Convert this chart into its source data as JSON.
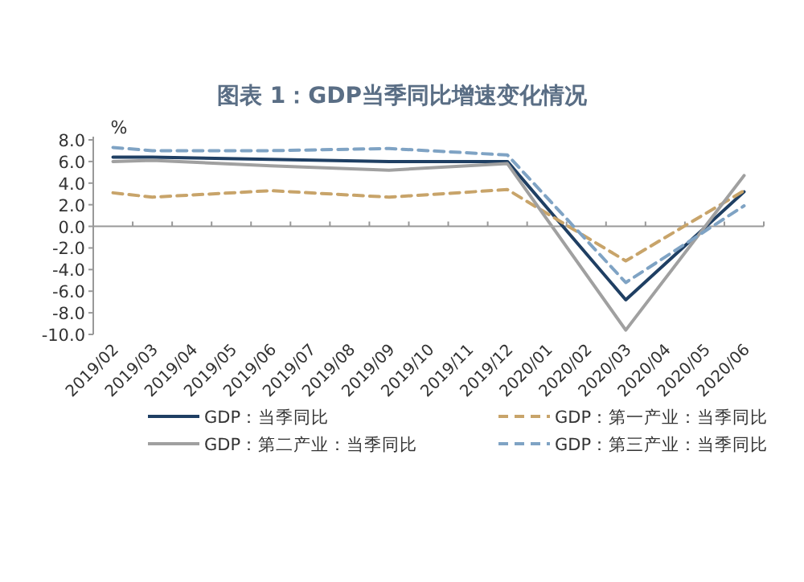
{
  "chart_data": {
    "type": "line",
    "title": "图表 1：GDP当季同比增速变化情况",
    "ylabel": "%",
    "categories": [
      "2019/02",
      "2019/03",
      "2019/04",
      "2019/05",
      "2019/06",
      "2019/07",
      "2019/08",
      "2019/09",
      "2019/10",
      "2019/11",
      "2019/12",
      "2020/01",
      "2020/02",
      "2020/03",
      "2020/04",
      "2020/05",
      "2020/06"
    ],
    "series": [
      {
        "name": "GDP：当季同比",
        "color": "#1f3f63",
        "line_style": "solid",
        "x": [
          "2019/02",
          "2019/03",
          "2019/06",
          "2019/09",
          "2019/12",
          "2020/03",
          "2020/06"
        ],
        "values": [
          6.4,
          6.4,
          6.2,
          6.0,
          6.0,
          -6.8,
          3.2
        ]
      },
      {
        "name": "GDP：第一产业：当季同比",
        "color": "#c8a46a",
        "line_style": "dashed",
        "x": [
          "2019/02",
          "2019/03",
          "2019/06",
          "2019/09",
          "2019/12",
          "2020/03",
          "2020/06"
        ],
        "values": [
          3.1,
          2.7,
          3.3,
          2.7,
          3.4,
          -3.2,
          3.3
        ]
      },
      {
        "name": "GDP：第二产业：当季同比",
        "color": "#a0a0a0",
        "line_style": "solid",
        "x": [
          "2019/02",
          "2019/03",
          "2019/06",
          "2019/09",
          "2019/12",
          "2020/03",
          "2020/06"
        ],
        "values": [
          6.0,
          6.1,
          5.6,
          5.2,
          5.8,
          -9.6,
          4.7
        ]
      },
      {
        "name": "GDP：第三产业：当季同比",
        "color": "#7fa3c4",
        "line_style": "dashed",
        "x": [
          "2019/02",
          "2019/03",
          "2019/06",
          "2019/09",
          "2019/12",
          "2020/03",
          "2020/06"
        ],
        "values": [
          7.3,
          7.0,
          7.0,
          7.2,
          6.6,
          -5.2,
          1.9
        ]
      }
    ],
    "ylim": [
      -10,
      8
    ],
    "yticks": [
      {
        "value": -10,
        "label": "-10.0"
      },
      {
        "value": -8,
        "label": "-8.0"
      },
      {
        "value": -6,
        "label": "-6.0"
      },
      {
        "value": -4,
        "label": "-4.0"
      },
      {
        "value": -2,
        "label": "-2.0"
      },
      {
        "value": 0,
        "label": "0.0"
      },
      {
        "value": 2,
        "label": "2.0"
      },
      {
        "value": 4,
        "label": "4.0"
      },
      {
        "value": 6,
        "label": "6.0"
      },
      {
        "value": 8,
        "label": "8.0"
      }
    ],
    "legend": "bottom",
    "marker": "none"
  }
}
